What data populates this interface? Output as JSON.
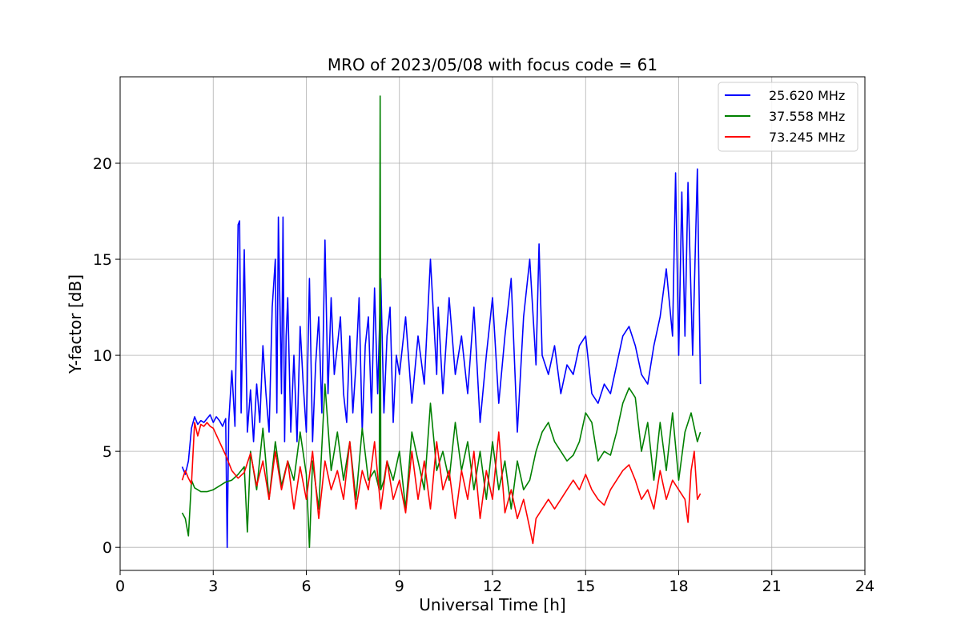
{
  "chart_data": {
    "type": "line",
    "title": "MRO of 2023/05/08 with focus code = 61",
    "xlabel": "Universal Time [h]",
    "ylabel": "Y-factor [dB]",
    "xlim": [
      0,
      24
    ],
    "ylim": [
      -1.2,
      24.5
    ],
    "xticks": [
      "0",
      "3",
      "6",
      "9",
      "12",
      "15",
      "18",
      "21",
      "24"
    ],
    "yticks": [
      "0",
      "5",
      "10",
      "15",
      "20"
    ],
    "grid": true,
    "legend_position": "top-right",
    "series": [
      {
        "name": "25.620 MHz",
        "color": "#0000ff",
        "x": [
          2.0,
          2.1,
          2.2,
          2.3,
          2.4,
          2.5,
          2.6,
          2.7,
          2.8,
          2.9,
          3.0,
          3.1,
          3.2,
          3.3,
          3.4,
          3.45,
          3.5,
          3.6,
          3.7,
          3.8,
          3.85,
          3.9,
          4.0,
          4.1,
          4.2,
          4.3,
          4.4,
          4.5,
          4.6,
          4.7,
          4.8,
          4.9,
          5.0,
          5.05,
          5.1,
          5.2,
          5.25,
          5.3,
          5.35,
          5.4,
          5.5,
          5.6,
          5.7,
          5.8,
          5.9,
          6.0,
          6.1,
          6.2,
          6.3,
          6.4,
          6.5,
          6.6,
          6.7,
          6.8,
          6.9,
          7.0,
          7.1,
          7.2,
          7.3,
          7.4,
          7.5,
          7.6,
          7.7,
          7.8,
          7.9,
          8.0,
          8.1,
          8.2,
          8.3,
          8.4,
          8.5,
          8.6,
          8.7,
          8.8,
          8.9,
          9.0,
          9.2,
          9.4,
          9.6,
          9.8,
          10.0,
          10.2,
          10.25,
          10.4,
          10.6,
          10.8,
          11.0,
          11.2,
          11.4,
          11.6,
          11.8,
          12.0,
          12.2,
          12.4,
          12.6,
          12.8,
          13.0,
          13.2,
          13.4,
          13.5,
          13.6,
          13.8,
          14.0,
          14.2,
          14.4,
          14.6,
          14.8,
          15.0,
          15.2,
          15.4,
          15.6,
          15.8,
          16.0,
          16.2,
          16.4,
          16.6,
          16.8,
          17.0,
          17.2,
          17.4,
          17.6,
          17.8,
          17.9,
          18.0,
          18.1,
          18.2,
          18.3,
          18.45,
          18.6,
          18.7
        ],
        "values": [
          4.2,
          3.8,
          4.5,
          6.2,
          6.8,
          6.4,
          6.6,
          6.5,
          6.7,
          6.9,
          6.5,
          6.8,
          6.6,
          6.3,
          6.7,
          0.0,
          6.5,
          9.2,
          6.3,
          16.8,
          17.0,
          7.0,
          15.5,
          6.0,
          8.2,
          5.5,
          8.5,
          6.5,
          10.5,
          8.0,
          6.0,
          12.5,
          15.0,
          7.0,
          17.2,
          8.0,
          17.2,
          5.5,
          11.0,
          13.0,
          6.0,
          10.0,
          5.5,
          11.5,
          8.5,
          6.0,
          14.0,
          5.5,
          9.5,
          12.0,
          7.0,
          16.0,
          8.0,
          13.0,
          9.0,
          10.5,
          12.0,
          8.0,
          6.5,
          11.0,
          7.0,
          9.5,
          13.0,
          6.0,
          10.5,
          12.0,
          7.0,
          13.5,
          8.0,
          14.0,
          7.0,
          11.0,
          12.5,
          6.5,
          10.0,
          9.0,
          12.0,
          7.5,
          11.0,
          8.5,
          15.0,
          9.0,
          12.5,
          8.0,
          13.0,
          9.0,
          11.0,
          8.0,
          12.5,
          6.5,
          10.0,
          13.0,
          7.5,
          11.0,
          14.0,
          6.0,
          12.0,
          15.0,
          9.5,
          15.8,
          10.0,
          9.0,
          10.5,
          8.0,
          9.5,
          9.0,
          10.5,
          11.0,
          8.0,
          7.5,
          8.5,
          8.0,
          9.5,
          11.0,
          11.5,
          10.5,
          9.0,
          8.5,
          10.5,
          12.0,
          14.5,
          11.0,
          19.5,
          10.0,
          18.5,
          11.0,
          19.0,
          10.0,
          19.7,
          8.5
        ]
      },
      {
        "name": "37.558 MHz",
        "color": "#008000",
        "x": [
          2.0,
          2.1,
          2.2,
          2.3,
          2.4,
          2.6,
          2.8,
          3.0,
          3.2,
          3.4,
          3.6,
          3.8,
          4.0,
          4.1,
          4.2,
          4.4,
          4.6,
          4.8,
          5.0,
          5.2,
          5.4,
          5.6,
          5.8,
          6.0,
          6.1,
          6.2,
          6.4,
          6.6,
          6.8,
          7.0,
          7.2,
          7.4,
          7.6,
          7.8,
          8.0,
          8.2,
          8.35,
          8.38,
          8.4,
          8.5,
          8.6,
          8.8,
          9.0,
          9.2,
          9.4,
          9.6,
          9.8,
          10.0,
          10.2,
          10.4,
          10.6,
          10.8,
          11.0,
          11.2,
          11.4,
          11.6,
          11.8,
          12.0,
          12.2,
          12.4,
          12.6,
          12.8,
          13.0,
          13.2,
          13.4,
          13.6,
          13.8,
          14.0,
          14.2,
          14.4,
          14.6,
          14.8,
          15.0,
          15.2,
          15.4,
          15.6,
          15.8,
          16.0,
          16.2,
          16.4,
          16.6,
          16.8,
          17.0,
          17.2,
          17.4,
          17.6,
          17.8,
          18.0,
          18.2,
          18.4,
          18.6,
          18.7
        ],
        "values": [
          1.8,
          1.5,
          0.6,
          3.5,
          3.1,
          2.9,
          2.9,
          3.0,
          3.2,
          3.4,
          3.5,
          3.8,
          4.2,
          0.8,
          5.0,
          3.0,
          6.2,
          2.5,
          5.5,
          3.2,
          4.5,
          3.5,
          6.0,
          3.8,
          0.0,
          4.5,
          2.0,
          8.5,
          4.0,
          6.0,
          3.5,
          5.5,
          2.5,
          6.2,
          3.5,
          4.0,
          3.0,
          23.5,
          3.0,
          3.5,
          4.5,
          3.5,
          5.0,
          2.0,
          6.0,
          4.5,
          3.0,
          7.5,
          4.0,
          5.0,
          3.5,
          6.5,
          4.0,
          5.5,
          3.0,
          5.0,
          2.5,
          5.5,
          3.0,
          4.5,
          2.0,
          4.5,
          3.0,
          3.5,
          5.0,
          6.0,
          6.5,
          5.5,
          5.0,
          4.5,
          4.8,
          5.5,
          7.0,
          6.5,
          4.5,
          5.0,
          4.8,
          6.0,
          7.5,
          8.3,
          7.8,
          5.0,
          6.5,
          3.5,
          6.5,
          4.0,
          7.0,
          3.5,
          6.0,
          7.0,
          5.5,
          6.0
        ]
      },
      {
        "name": "73.245 MHz",
        "color": "#ff0000",
        "x": [
          2.0,
          2.1,
          2.2,
          2.3,
          2.4,
          2.5,
          2.6,
          2.7,
          2.8,
          2.9,
          3.0,
          3.2,
          3.4,
          3.6,
          3.8,
          4.0,
          4.2,
          4.4,
          4.6,
          4.8,
          5.0,
          5.2,
          5.4,
          5.6,
          5.8,
          6.0,
          6.2,
          6.4,
          6.6,
          6.8,
          7.0,
          7.2,
          7.4,
          7.6,
          7.8,
          8.0,
          8.2,
          8.4,
          8.6,
          8.8,
          9.0,
          9.2,
          9.4,
          9.6,
          9.8,
          10.0,
          10.2,
          10.4,
          10.6,
          10.8,
          11.0,
          11.2,
          11.4,
          11.6,
          11.8,
          12.0,
          12.2,
          12.4,
          12.6,
          12.8,
          13.0,
          13.2,
          13.3,
          13.4,
          13.6,
          13.8,
          14.0,
          14.2,
          14.4,
          14.6,
          14.8,
          15.0,
          15.2,
          15.4,
          15.6,
          15.8,
          16.0,
          16.2,
          16.4,
          16.6,
          16.8,
          17.0,
          17.2,
          17.4,
          17.6,
          17.8,
          18.0,
          18.2,
          18.3,
          18.4,
          18.5,
          18.6,
          18.7
        ],
        "values": [
          3.5,
          4.0,
          3.6,
          3.3,
          6.5,
          5.8,
          6.4,
          6.3,
          6.5,
          6.3,
          6.2,
          5.5,
          4.8,
          4.0,
          3.6,
          3.9,
          4.9,
          3.2,
          4.5,
          2.5,
          5.0,
          3.0,
          4.5,
          2.0,
          4.2,
          2.5,
          5.0,
          1.5,
          4.5,
          3.0,
          4.0,
          2.5,
          5.5,
          2.0,
          4.0,
          3.0,
          5.5,
          2.0,
          4.5,
          2.5,
          3.5,
          1.8,
          5.0,
          2.5,
          4.5,
          2.0,
          5.5,
          3.0,
          4.0,
          1.5,
          4.0,
          2.5,
          5.0,
          1.5,
          4.0,
          2.5,
          6.0,
          1.8,
          3.0,
          1.5,
          2.5,
          1.0,
          0.2,
          1.5,
          2.0,
          2.5,
          2.0,
          2.5,
          3.0,
          3.5,
          3.0,
          3.8,
          3.0,
          2.5,
          2.2,
          3.0,
          3.5,
          4.0,
          4.3,
          3.5,
          2.5,
          3.0,
          2.0,
          4.0,
          2.5,
          3.5,
          3.0,
          2.5,
          1.3,
          4.0,
          5.0,
          2.5,
          2.8
        ]
      }
    ]
  }
}
